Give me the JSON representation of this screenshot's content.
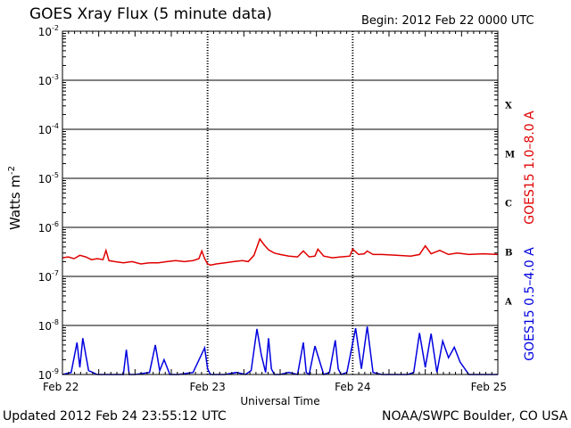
{
  "header": {
    "title": "GOES Xray Flux (5 minute data)",
    "begin": "Begin:  2012 Feb 22 0000 UTC"
  },
  "footer": {
    "updated": "Updated 2012 Feb 24 23:55:12 UTC",
    "credit": "NOAA/SWPC Boulder, CO USA"
  },
  "chart_data": {
    "type": "line",
    "title": "GOES Xray Flux (5 minute data)",
    "xlabel": "Universal Time",
    "ylabel": "Watts m-2",
    "yscale": "log",
    "ylim": [
      1e-09,
      0.01
    ],
    "xlim": [
      0,
      3
    ],
    "grid": true,
    "x_ticks": [
      "Feb 22",
      "Feb 23",
      "Feb 24",
      "Feb 25"
    ],
    "y_ticks": [
      {
        "base": "10",
        "exp": "-2"
      },
      {
        "base": "10",
        "exp": "-3"
      },
      {
        "base": "10",
        "exp": "-4"
      },
      {
        "base": "10",
        "exp": "-5"
      },
      {
        "base": "10",
        "exp": "-6"
      },
      {
        "base": "10",
        "exp": "-7"
      },
      {
        "base": "10",
        "exp": "-8"
      },
      {
        "base": "10",
        "exp": "-9"
      }
    ],
    "flare_classes": [
      {
        "label": "X",
        "value": 0.0001
      },
      {
        "label": "M",
        "value": 1e-05
      },
      {
        "label": "C",
        "value": 1e-06
      },
      {
        "label": "B",
        "value": 1e-07
      },
      {
        "label": "A",
        "value": 1e-08
      }
    ],
    "series": [
      {
        "name": "GOES15 1.0–8.0 A",
        "color": "#e00000",
        "x": [
          0,
          0.04,
          0.08,
          0.12,
          0.16,
          0.2,
          0.24,
          0.28,
          0.3,
          0.32,
          0.36,
          0.42,
          0.48,
          0.54,
          0.6,
          0.66,
          0.72,
          0.78,
          0.84,
          0.9,
          0.94,
          0.96,
          0.98,
          1.0,
          1.02,
          1.06,
          1.12,
          1.18,
          1.24,
          1.28,
          1.32,
          1.36,
          1.39,
          1.42,
          1.46,
          1.5,
          1.56,
          1.62,
          1.66,
          1.7,
          1.74,
          1.76,
          1.8,
          1.86,
          1.92,
          1.98,
          2.0,
          2.04,
          2.08,
          2.1,
          2.14,
          2.2,
          2.3,
          2.4,
          2.46,
          2.5,
          2.54,
          2.6,
          2.66,
          2.72,
          2.8,
          2.9,
          3.0
        ],
        "values": [
          2.4e-07,
          2.5e-07,
          2.3e-07,
          2.7e-07,
          2.5e-07,
          2.2e-07,
          2.3e-07,
          2.2e-07,
          3.4e-07,
          2.1e-07,
          2e-07,
          1.9e-07,
          2e-07,
          1.8e-07,
          1.9e-07,
          1.9e-07,
          2e-07,
          2.1e-07,
          2e-07,
          2.1e-07,
          2.3e-07,
          3.3e-07,
          2.3e-07,
          1.8e-07,
          1.7e-07,
          1.8e-07,
          1.9e-07,
          2e-07,
          2.1e-07,
          2e-07,
          2.7e-07,
          5.8e-07,
          4.4e-07,
          3.5e-07,
          3e-07,
          2.8e-07,
          2.6e-07,
          2.5e-07,
          3.3e-07,
          2.5e-07,
          2.6e-07,
          3.6e-07,
          2.6e-07,
          2.4e-07,
          2.5e-07,
          2.6e-07,
          3.6e-07,
          2.8e-07,
          2.9e-07,
          3.3e-07,
          2.8e-07,
          2.8e-07,
          2.7e-07,
          2.6e-07,
          2.8e-07,
          4.2e-07,
          2.9e-07,
          3.4e-07,
          2.8e-07,
          3e-07,
          2.8e-07,
          2.9e-07,
          2.8e-07
        ]
      },
      {
        "name": "GOES15 0.5–4.0 A",
        "color": "#0000e0",
        "x": [
          0,
          0.06,
          0.1,
          0.12,
          0.14,
          0.18,
          0.24,
          0.3,
          0.42,
          0.44,
          0.46,
          0.5,
          0.6,
          0.64,
          0.67,
          0.7,
          0.74,
          0.8,
          0.9,
          0.98,
          1.0,
          1.02,
          1.06,
          1.12,
          1.2,
          1.26,
          1.3,
          1.34,
          1.37,
          1.4,
          1.42,
          1.44,
          1.46,
          1.5,
          1.56,
          1.62,
          1.66,
          1.68,
          1.7,
          1.74,
          1.8,
          1.84,
          1.88,
          1.9,
          1.92,
          1.96,
          2.02,
          2.06,
          2.1,
          2.14,
          2.2,
          2.3,
          2.38,
          2.42,
          2.46,
          2.5,
          2.54,
          2.58,
          2.62,
          2.66,
          2.7,
          2.74,
          2.8,
          2.9,
          3.0
        ],
        "values": [
          1e-09,
          1.1e-09,
          4.5e-09,
          1.4e-09,
          5.5e-09,
          1.2e-09,
          1e-09,
          1e-09,
          1e-09,
          3.2e-09,
          1e-09,
          1e-09,
          1.1e-09,
          4e-09,
          1.2e-09,
          2e-09,
          1e-09,
          1e-09,
          1.1e-09,
          3.5e-09,
          1.3e-09,
          1e-09,
          1e-09,
          1e-09,
          1.1e-09,
          1e-09,
          1.2e-09,
          8.5e-09,
          2.5e-09,
          1.1e-09,
          5.5e-09,
          1.3e-09,
          1e-09,
          1e-09,
          1.1e-09,
          1e-09,
          4.5e-09,
          1.1e-09,
          1e-09,
          3.8e-09,
          1e-09,
          1.1e-09,
          5e-09,
          1.3e-09,
          1e-09,
          1.1e-09,
          8.8e-09,
          1.3e-09,
          9.5e-09,
          1.1e-09,
          1e-09,
          1e-09,
          1e-09,
          1.1e-09,
          7e-09,
          1.4e-09,
          6.8e-09,
          1.1e-09,
          4.8e-09,
          2.2e-09,
          3.6e-09,
          1.8e-09,
          1e-09,
          1e-09,
          1e-09
        ]
      }
    ]
  }
}
